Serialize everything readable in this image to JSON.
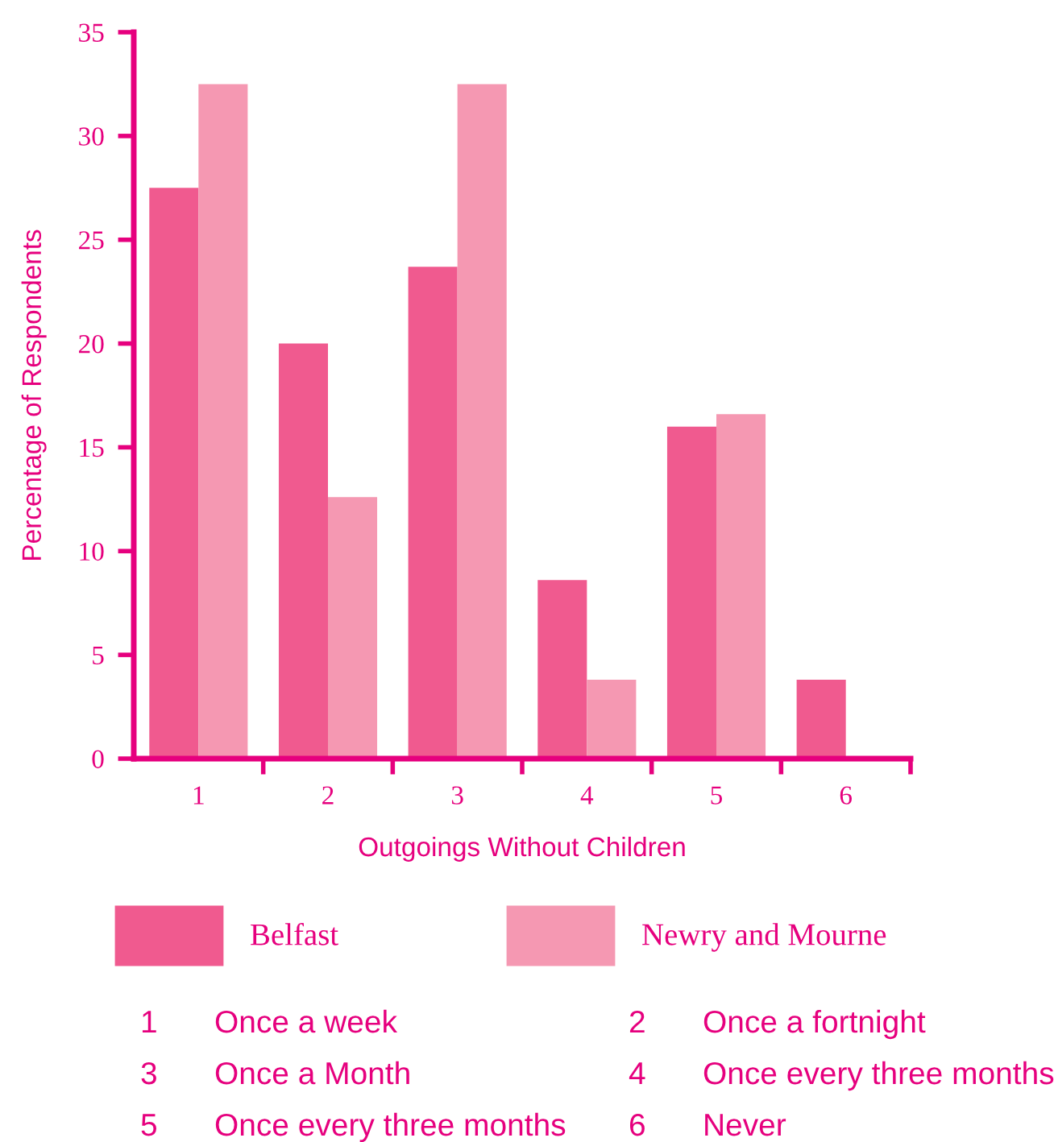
{
  "chart_data": {
    "type": "bar",
    "xlabel": "Outgoings Without Children",
    "ylabel": "Percentage of Respondents",
    "categories": [
      "1",
      "2",
      "3",
      "4",
      "5",
      "6"
    ],
    "series": [
      {
        "name": "Belfast",
        "color": "#f05a8f",
        "values": [
          27.5,
          20.0,
          23.7,
          8.6,
          16.0,
          3.8
        ]
      },
      {
        "name": "Newry and Mourne",
        "color": "#f598b2",
        "values": [
          32.5,
          12.6,
          32.5,
          3.8,
          16.6,
          null
        ]
      }
    ],
    "ylim": [
      0,
      35
    ],
    "yticks": [
      0,
      5,
      10,
      15,
      20,
      25,
      30,
      35
    ],
    "grid": false,
    "legend": "bottom",
    "annotations": [
      "1",
      "Once a week",
      "2",
      "Once a fortnight",
      "3",
      "Once a Month",
      "4",
      "Once every three months",
      "5",
      "Once every three months",
      "6",
      "Never"
    ]
  }
}
